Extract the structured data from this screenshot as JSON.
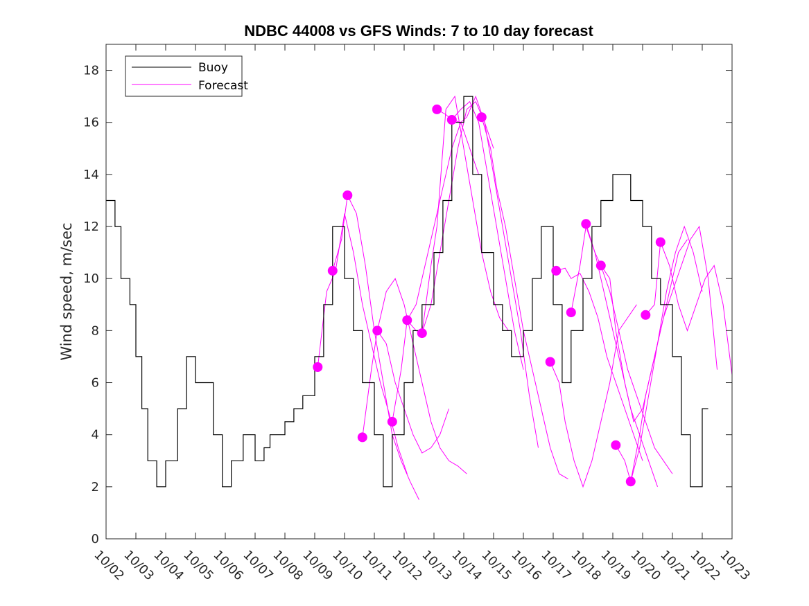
{
  "chart_data": {
    "type": "line",
    "title": "NDBC 44008 vs GFS Winds: 7 to 10 day forecast",
    "xlabel": "",
    "ylabel": "Wind speed, m/sec",
    "xlim": [
      0,
      21
    ],
    "ylim": [
      0,
      19
    ],
    "yticks": [
      0,
      2,
      4,
      6,
      8,
      10,
      12,
      14,
      16,
      18
    ],
    "xtick_labels": [
      "10/02",
      "10/03",
      "10/04",
      "10/05",
      "10/06",
      "10/07",
      "10/08",
      "10/09",
      "10/10",
      "10/11",
      "10/12",
      "10/13",
      "10/14",
      "10/15",
      "10/16",
      "10/17",
      "10/18",
      "10/19",
      "10/20",
      "10/21",
      "10/22",
      "10/23"
    ],
    "legend": {
      "position": "top-left",
      "entries": [
        "Buoy",
        "Forecast"
      ]
    },
    "colors": {
      "buoy": "#000000",
      "forecast": "#ff00ff",
      "axis": "#262626"
    },
    "series": [
      {
        "name": "Buoy",
        "style": "step",
        "x": [
          0,
          0.3,
          0.5,
          0.8,
          1.0,
          1.2,
          1.4,
          1.7,
          2.0,
          2.4,
          2.7,
          3.0,
          3.3,
          3.6,
          3.9,
          4.2,
          4.6,
          5.0,
          5.3,
          5.5,
          5.8,
          6.0,
          6.3,
          6.6,
          7.0,
          7.3,
          7.6,
          8.0,
          8.3,
          8.6,
          9.0,
          9.3,
          9.6,
          10.0,
          10.3,
          10.6,
          11.0,
          11.3,
          11.6,
          12.0,
          12.3,
          12.6,
          13.0,
          13.3,
          13.6,
          14.0,
          14.3,
          14.6,
          15.0,
          15.3,
          15.6,
          16.0,
          16.3,
          16.6,
          17.0,
          17.3,
          17.6,
          18.0,
          18.3,
          18.6,
          19.0,
          19.3,
          19.6,
          20.0,
          20.2
        ],
        "y": [
          13,
          12,
          10,
          9,
          7,
          5,
          3,
          2,
          3,
          5,
          7,
          6,
          6,
          4,
          2,
          3,
          4,
          3,
          3.5,
          4,
          4,
          4.5,
          5,
          5.5,
          7,
          9,
          12,
          10,
          8,
          6,
          4,
          2,
          4,
          6,
          8,
          9,
          11,
          13,
          16,
          17,
          14,
          11,
          9,
          8,
          7,
          8,
          10,
          12,
          9,
          6,
          8,
          10,
          12,
          13,
          14,
          14,
          13,
          12,
          10,
          9,
          7,
          4,
          2,
          5,
          5
        ]
      },
      {
        "name": "Forecast",
        "runs": [
          {
            "x": [
              7.1,
              7.4,
              7.7,
              8.0,
              8.3,
              8.6,
              8.9,
              9.2,
              9.5,
              9.8,
              10.1
            ],
            "y": [
              6.6,
              9.5,
              10.3,
              12.5,
              11.0,
              9.0,
              7.5,
              6.0,
              4.8,
              3.5,
              2.5
            ]
          },
          {
            "x": [
              7.6,
              7.9,
              8.1,
              8.4,
              8.7,
              9.0,
              9.3,
              9.6,
              9.9,
              10.2,
              10.5
            ],
            "y": [
              10.3,
              11.5,
              13.2,
              12.5,
              10.5,
              8.0,
              6.0,
              4.0,
              3.0,
              2.2,
              1.5
            ]
          },
          {
            "x": [
              8.6,
              8.9,
              9.1,
              9.4,
              9.7,
              10.0,
              10.3,
              10.6,
              10.9,
              11.2,
              11.5
            ],
            "y": [
              3.9,
              6.5,
              8.0,
              7.5,
              6.0,
              5.0,
              4.0,
              3.3,
              3.5,
              4.0,
              5.0
            ]
          },
          {
            "x": [
              9.1,
              9.4,
              9.7,
              10.0,
              10.3,
              10.6,
              10.9,
              11.2,
              11.5,
              11.8,
              12.1
            ],
            "y": [
              8.0,
              9.5,
              10.0,
              9.0,
              7.5,
              6.0,
              4.5,
              3.5,
              3.0,
              2.8,
              2.5
            ]
          },
          {
            "x": [
              9.6,
              9.9,
              10.1,
              10.4,
              10.7,
              11.0,
              11.3,
              11.6,
              11.9,
              12.2,
              12.5
            ],
            "y": [
              4.5,
              6.5,
              8.4,
              9.0,
              10.5,
              12.0,
              13.5,
              15.0,
              16.0,
              15.0,
              14.0
            ]
          },
          {
            "x": [
              10.1,
              10.4,
              10.6,
              10.9,
              11.2,
              11.5,
              11.8,
              12.1,
              12.4,
              12.7,
              13.0
            ],
            "y": [
              8.4,
              8.0,
              7.9,
              9.0,
              11.0,
              13.0,
              15.0,
              16.5,
              16.8,
              16.0,
              15.0
            ]
          },
          {
            "x": [
              10.6,
              10.9,
              11.1,
              11.4,
              11.7,
              12.0,
              12.3,
              12.6,
              12.9,
              13.2,
              13.5
            ],
            "y": [
              7.9,
              10.5,
              12.0,
              16.5,
              17.0,
              15.0,
              13.0,
              11.0,
              9.5,
              8.5,
              8.0
            ]
          },
          {
            "x": [
              11.1,
              11.4,
              11.6,
              11.9,
              12.2,
              12.5,
              12.8,
              13.1,
              13.4,
              13.7,
              14.0
            ],
            "y": [
              16.5,
              16.3,
              16.1,
              16.5,
              16.8,
              16.0,
              14.0,
              12.0,
              10.0,
              8.0,
              6.5
            ]
          },
          {
            "x": [
              11.6,
              11.9,
              12.1,
              12.4,
              12.7,
              13.0,
              13.3,
              13.6,
              13.9,
              14.2,
              14.5
            ],
            "y": [
              16.1,
              16.0,
              16.2,
              17.0,
              16.0,
              14.0,
              12.0,
              10.0,
              8.0,
              5.5,
              3.5
            ]
          },
          {
            "x": [
              12.6,
              12.9,
              13.1,
              13.4,
              13.7,
              14.0,
              14.3,
              14.6,
              14.9,
              15.2,
              15.5
            ],
            "y": [
              16.2,
              15.0,
              13.5,
              12.0,
              10.0,
              8.0,
              6.5,
              5.0,
              3.5,
              2.5,
              2.3
            ]
          },
          {
            "x": [
              14.9,
              15.2,
              15.4,
              15.7,
              16.0,
              16.3,
              16.6,
              16.9,
              17.2,
              17.5,
              17.8
            ],
            "y": [
              6.8,
              6.0,
              4.5,
              3.0,
              2.0,
              3.0,
              4.5,
              6.0,
              8.0,
              8.5,
              9.0
            ]
          },
          {
            "x": [
              15.1,
              15.4,
              15.6,
              15.9,
              16.2,
              16.5,
              16.8,
              17.1,
              17.4,
              17.7,
              18.0
            ],
            "y": [
              10.3,
              10.4,
              10.0,
              10.2,
              9.5,
              8.5,
              7.0,
              6.0,
              5.0,
              4.0,
              3.0
            ]
          },
          {
            "x": [
              15.6,
              15.9,
              16.1,
              16.4,
              16.7,
              17.0,
              17.3,
              17.6,
              17.9,
              18.2,
              18.5
            ],
            "y": [
              8.7,
              10.5,
              12.0,
              11.0,
              9.5,
              8.0,
              6.5,
              5.0,
              4.0,
              3.0,
              2.0
            ]
          },
          {
            "x": [
              16.1,
              16.4,
              16.6,
              16.9,
              17.2,
              17.5,
              17.8,
              18.1,
              18.4,
              18.7,
              19.0
            ],
            "y": [
              12.1,
              11.0,
              10.5,
              9.5,
              8.0,
              6.5,
              5.5,
              4.5,
              3.5,
              3.0,
              2.5
            ]
          },
          {
            "x": [
              16.6,
              16.9,
              17.1,
              17.4,
              17.7,
              18.0,
              18.3,
              18.6,
              18.9,
              19.2,
              19.5
            ],
            "y": [
              10.5,
              10.0,
              8.0,
              6.0,
              4.5,
              5.0,
              6.5,
              8.0,
              9.5,
              11.0,
              11.5
            ]
          },
          {
            "x": [
              17.1,
              17.4,
              17.6,
              17.9,
              18.2,
              18.5,
              18.8,
              19.1,
              19.4,
              19.7,
              20.0
            ],
            "y": [
              3.6,
              3.0,
              2.2,
              3.5,
              5.5,
              7.5,
              9.5,
              11.0,
              12.0,
              11.0,
              9.5
            ]
          },
          {
            "x": [
              17.6,
              17.9,
              18.1,
              18.4,
              18.7,
              19.0,
              19.3,
              19.6,
              19.9,
              20.2,
              20.5
            ],
            "y": [
              2.2,
              4.0,
              5.5,
              7.0,
              8.5,
              9.5,
              10.5,
              11.5,
              12.0,
              10.0,
              6.5
            ]
          },
          {
            "x": [
              18.1,
              18.4,
              18.6,
              18.9,
              19.2,
              19.5,
              19.8,
              20.1,
              20.4,
              20.7,
              21.0
            ],
            "y": [
              8.6,
              9.0,
              11.4,
              10.5,
              9.0,
              8.0,
              9.0,
              10.0,
              10.5,
              9.0,
              6.3
            ]
          }
        ],
        "markers": [
          {
            "x": 7.1,
            "y": 6.6
          },
          {
            "x": 7.6,
            "y": 10.3
          },
          {
            "x": 8.1,
            "y": 13.2
          },
          {
            "x": 8.6,
            "y": 3.9
          },
          {
            "x": 9.1,
            "y": 8.0
          },
          {
            "x": 9.6,
            "y": 4.5
          },
          {
            "x": 10.1,
            "y": 8.4
          },
          {
            "x": 10.6,
            "y": 7.9
          },
          {
            "x": 11.1,
            "y": 16.5
          },
          {
            "x": 11.6,
            "y": 16.1
          },
          {
            "x": 12.6,
            "y": 16.2
          },
          {
            "x": 14.9,
            "y": 6.8
          },
          {
            "x": 15.1,
            "y": 10.3
          },
          {
            "x": 15.6,
            "y": 8.7
          },
          {
            "x": 16.1,
            "y": 12.1
          },
          {
            "x": 16.6,
            "y": 10.5
          },
          {
            "x": 17.1,
            "y": 3.6
          },
          {
            "x": 17.6,
            "y": 2.2
          },
          {
            "x": 18.1,
            "y": 8.6
          },
          {
            "x": 18.6,
            "y": 11.4
          }
        ]
      }
    ]
  }
}
